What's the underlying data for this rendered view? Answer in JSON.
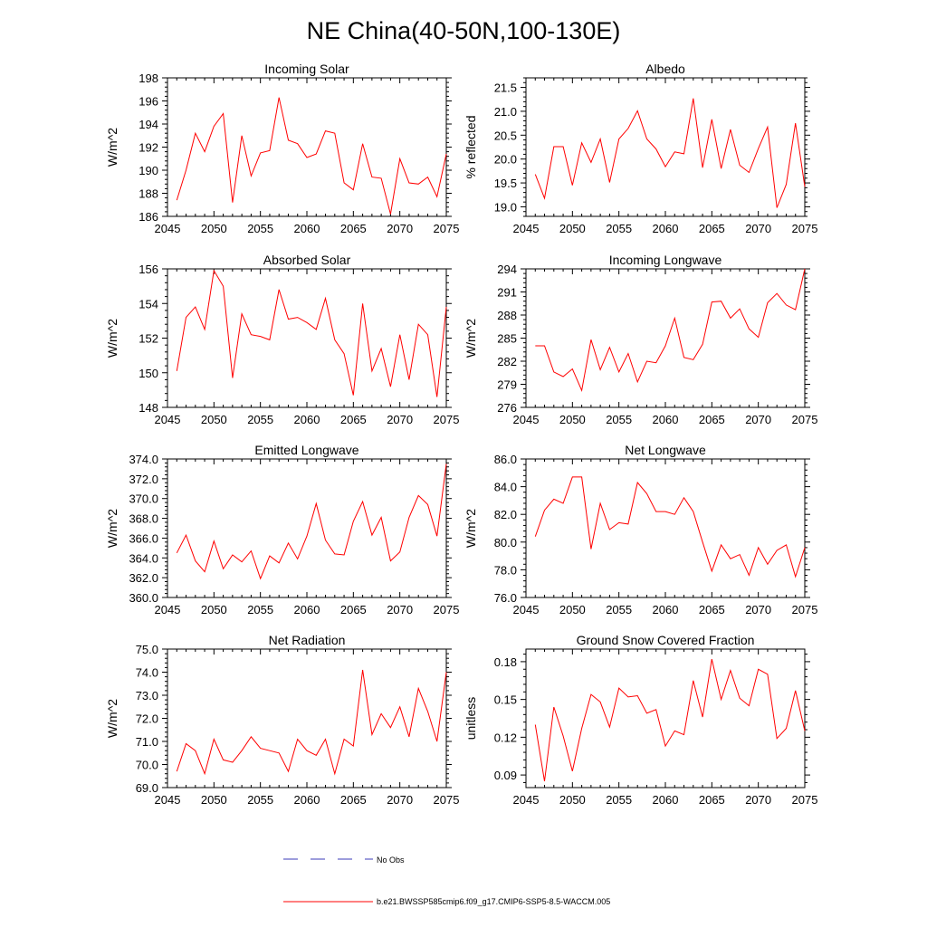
{
  "page": {
    "title": "NE China(40-50N,100-130E)"
  },
  "legend": {
    "items": [
      {
        "label": "No Obs",
        "color": "#3b3bb8",
        "style": "dashed"
      },
      {
        "label": "b.e21.BWSSP585cmip6.f09_g17.CMIP6-SSP5-8.5-WACCM.005",
        "color": "#ff0000",
        "style": "solid"
      }
    ]
  },
  "chart_data": [
    {
      "type": "line",
      "title": "Incoming Solar",
      "ylabel": "W/m^2",
      "xlim": [
        2045,
        2075
      ],
      "ylim": [
        186,
        198
      ],
      "xticks": [
        2045,
        2050,
        2055,
        2060,
        2065,
        2070,
        2075
      ],
      "yticks": [
        186,
        188,
        190,
        192,
        194,
        196,
        198
      ],
      "ydecimals": 0,
      "x": [
        2046,
        2047,
        2048,
        2049,
        2050,
        2051,
        2052,
        2053,
        2054,
        2055,
        2056,
        2057,
        2058,
        2059,
        2060,
        2061,
        2062,
        2063,
        2064,
        2065,
        2066,
        2067,
        2068,
        2069,
        2070,
        2071,
        2072,
        2073,
        2074,
        2075
      ],
      "series": [
        {
          "color": "#ff0000",
          "values": [
            187.4,
            190.0,
            193.2,
            191.6,
            193.8,
            194.9,
            187.2,
            193.0,
            189.5,
            191.5,
            191.7,
            196.3,
            192.6,
            192.3,
            191.1,
            191.4,
            193.4,
            193.2,
            188.9,
            188.3,
            192.3,
            189.4,
            189.3,
            186.2,
            191.0,
            188.9,
            188.8,
            189.4,
            187.7,
            191.4
          ]
        }
      ]
    },
    {
      "type": "line",
      "title": "Albedo",
      "ylabel": "% reflected",
      "xlim": [
        2045,
        2075
      ],
      "ylim": [
        18.8,
        21.7
      ],
      "xticks": [
        2045,
        2050,
        2055,
        2060,
        2065,
        2070,
        2075
      ],
      "yticks": [
        19.0,
        19.5,
        20.0,
        20.5,
        21.0,
        21.5
      ],
      "ydecimals": 1,
      "x": [
        2046,
        2047,
        2048,
        2049,
        2050,
        2051,
        2052,
        2053,
        2054,
        2055,
        2056,
        2057,
        2058,
        2059,
        2060,
        2061,
        2062,
        2063,
        2064,
        2065,
        2066,
        2067,
        2068,
        2069,
        2070,
        2071,
        2072,
        2073,
        2074,
        2075
      ],
      "series": [
        {
          "color": "#ff0000",
          "values": [
            19.68,
            19.18,
            20.26,
            20.26,
            19.45,
            20.34,
            19.93,
            20.42,
            19.51,
            20.42,
            20.64,
            21.01,
            20.42,
            20.21,
            19.84,
            20.15,
            20.11,
            21.27,
            19.82,
            20.83,
            19.8,
            20.62,
            19.87,
            19.72,
            20.22,
            20.67,
            18.98,
            19.47,
            20.75,
            19.42
          ]
        }
      ]
    },
    {
      "type": "line",
      "title": "Absorbed Solar",
      "ylabel": "W/m^2",
      "xlim": [
        2045,
        2075
      ],
      "ylim": [
        148,
        156
      ],
      "xticks": [
        2045,
        2050,
        2055,
        2060,
        2065,
        2070,
        2075
      ],
      "yticks": [
        148,
        150,
        152,
        154,
        156
      ],
      "ydecimals": 0,
      "x": [
        2046,
        2047,
        2048,
        2049,
        2050,
        2051,
        2052,
        2053,
        2054,
        2055,
        2056,
        2057,
        2058,
        2059,
        2060,
        2061,
        2062,
        2063,
        2064,
        2065,
        2066,
        2067,
        2068,
        2069,
        2070,
        2071,
        2072,
        2073,
        2074,
        2075
      ],
      "series": [
        {
          "color": "#ff0000",
          "values": [
            150.1,
            153.2,
            153.8,
            152.5,
            155.9,
            155.0,
            149.7,
            153.4,
            152.2,
            152.1,
            151.9,
            154.8,
            153.1,
            153.2,
            152.9,
            152.5,
            154.3,
            151.9,
            151.1,
            148.7,
            154.0,
            150.1,
            151.4,
            149.2,
            152.2,
            149.6,
            152.8,
            152.2,
            148.6,
            153.8
          ]
        }
      ]
    },
    {
      "type": "line",
      "title": "Incoming Longwave",
      "ylabel": "W/m^2",
      "xlim": [
        2045,
        2075
      ],
      "ylim": [
        276,
        294
      ],
      "xticks": [
        2045,
        2050,
        2055,
        2060,
        2065,
        2070,
        2075
      ],
      "yticks": [
        276,
        279,
        282,
        285,
        288,
        291,
        294
      ],
      "ydecimals": 0,
      "x": [
        2046,
        2047,
        2048,
        2049,
        2050,
        2051,
        2052,
        2053,
        2054,
        2055,
        2056,
        2057,
        2058,
        2059,
        2060,
        2061,
        2062,
        2063,
        2064,
        2065,
        2066,
        2067,
        2068,
        2069,
        2070,
        2071,
        2072,
        2073,
        2074,
        2075
      ],
      "series": [
        {
          "color": "#ff0000",
          "values": [
            284.0,
            284.0,
            280.6,
            280.0,
            281.0,
            278.2,
            284.8,
            280.9,
            283.8,
            280.6,
            283.0,
            279.3,
            282.0,
            281.8,
            284.0,
            287.6,
            282.5,
            282.2,
            284.2,
            289.7,
            289.8,
            287.6,
            288.8,
            286.2,
            285.1,
            289.6,
            290.8,
            289.3,
            288.7,
            294.0
          ]
        }
      ]
    },
    {
      "type": "line",
      "title": "Emitted Longwave",
      "ylabel": "W/m^2",
      "xlim": [
        2045,
        2075
      ],
      "ylim": [
        360,
        374
      ],
      "xticks": [
        2045,
        2050,
        2055,
        2060,
        2065,
        2070,
        2075
      ],
      "yticks": [
        360.0,
        362.0,
        364.0,
        366.0,
        368.0,
        370.0,
        372.0,
        374.0
      ],
      "ydecimals": 1,
      "x": [
        2046,
        2047,
        2048,
        2049,
        2050,
        2051,
        2052,
        2053,
        2054,
        2055,
        2056,
        2057,
        2058,
        2059,
        2060,
        2061,
        2062,
        2063,
        2064,
        2065,
        2066,
        2067,
        2068,
        2069,
        2070,
        2071,
        2072,
        2073,
        2074,
        2075
      ],
      "series": [
        {
          "color": "#ff0000",
          "values": [
            364.5,
            366.3,
            363.7,
            362.6,
            365.7,
            362.9,
            364.3,
            363.6,
            364.7,
            361.9,
            364.2,
            363.5,
            365.5,
            363.9,
            366.2,
            369.5,
            365.8,
            364.4,
            364.3,
            367.7,
            369.7,
            366.3,
            368.1,
            363.7,
            364.6,
            368.1,
            370.3,
            369.4,
            366.2,
            373.5
          ]
        }
      ]
    },
    {
      "type": "line",
      "title": "Net Longwave",
      "ylabel": "W/m^2",
      "xlim": [
        2045,
        2075
      ],
      "ylim": [
        76,
        86
      ],
      "xticks": [
        2045,
        2050,
        2055,
        2060,
        2065,
        2070,
        2075
      ],
      "yticks": [
        76.0,
        78.0,
        80.0,
        82.0,
        84.0,
        86.0
      ],
      "ydecimals": 1,
      "x": [
        2046,
        2047,
        2048,
        2049,
        2050,
        2051,
        2052,
        2053,
        2054,
        2055,
        2056,
        2057,
        2058,
        2059,
        2060,
        2061,
        2062,
        2063,
        2064,
        2065,
        2066,
        2067,
        2068,
        2069,
        2070,
        2071,
        2072,
        2073,
        2074,
        2075
      ],
      "series": [
        {
          "color": "#ff0000",
          "values": [
            80.4,
            82.3,
            83.1,
            82.8,
            84.7,
            84.7,
            79.5,
            82.8,
            80.9,
            81.4,
            81.3,
            84.3,
            83.5,
            82.2,
            82.2,
            82.0,
            83.2,
            82.2,
            80.0,
            77.9,
            79.8,
            78.8,
            79.1,
            77.6,
            79.6,
            78.4,
            79.4,
            79.8,
            77.5,
            79.6
          ]
        }
      ]
    },
    {
      "type": "line",
      "title": "Net Radiation",
      "ylabel": "W/m^2",
      "xlim": [
        2045,
        2075
      ],
      "ylim": [
        69,
        75
      ],
      "xticks": [
        2045,
        2050,
        2055,
        2060,
        2065,
        2070,
        2075
      ],
      "yticks": [
        69.0,
        70.0,
        71.0,
        72.0,
        73.0,
        74.0,
        75.0
      ],
      "ydecimals": 1,
      "x": [
        2046,
        2047,
        2048,
        2049,
        2050,
        2051,
        2052,
        2053,
        2054,
        2055,
        2056,
        2057,
        2058,
        2059,
        2060,
        2061,
        2062,
        2063,
        2064,
        2065,
        2066,
        2067,
        2068,
        2069,
        2070,
        2071,
        2072,
        2073,
        2074,
        2075
      ],
      "series": [
        {
          "color": "#ff0000",
          "values": [
            69.7,
            70.9,
            70.6,
            69.6,
            71.1,
            70.2,
            70.1,
            70.6,
            71.2,
            70.7,
            70.6,
            70.5,
            69.7,
            71.1,
            70.6,
            70.4,
            71.1,
            69.6,
            71.1,
            70.8,
            74.1,
            71.3,
            72.2,
            71.6,
            72.5,
            71.2,
            73.3,
            72.3,
            71.0,
            74.0
          ]
        }
      ]
    },
    {
      "type": "line",
      "title": "Ground Snow Covered Fraction",
      "ylabel": "unitless",
      "xlim": [
        2045,
        2075
      ],
      "ylim": [
        0.08,
        0.19
      ],
      "xticks": [
        2045,
        2050,
        2055,
        2060,
        2065,
        2070,
        2075
      ],
      "yticks": [
        0.09,
        0.12,
        0.15,
        0.18
      ],
      "ydecimals": 2,
      "x": [
        2046,
        2047,
        2048,
        2049,
        2050,
        2051,
        2052,
        2053,
        2054,
        2055,
        2056,
        2057,
        2058,
        2059,
        2060,
        2061,
        2062,
        2063,
        2064,
        2065,
        2066,
        2067,
        2068,
        2069,
        2070,
        2071,
        2072,
        2073,
        2074,
        2075
      ],
      "series": [
        {
          "color": "#ff0000",
          "values": [
            0.13,
            0.085,
            0.144,
            0.121,
            0.093,
            0.127,
            0.154,
            0.148,
            0.128,
            0.159,
            0.152,
            0.153,
            0.139,
            0.142,
            0.113,
            0.125,
            0.122,
            0.165,
            0.136,
            0.182,
            0.15,
            0.173,
            0.151,
            0.145,
            0.174,
            0.17,
            0.119,
            0.127,
            0.157,
            0.125
          ]
        }
      ]
    }
  ]
}
